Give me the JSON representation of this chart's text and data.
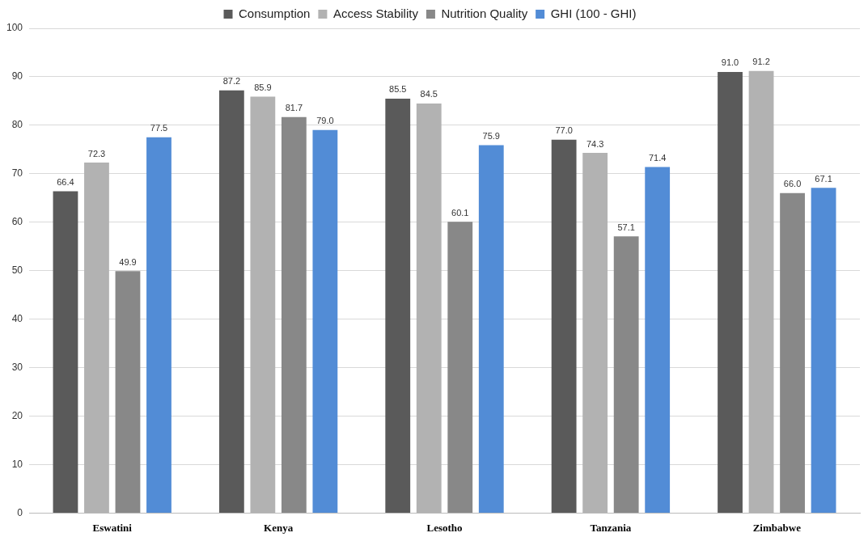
{
  "chart_data": {
    "type": "bar",
    "categories": [
      "Eswatini",
      "Kenya",
      "Lesotho",
      "Tanzania",
      "Zimbabwe"
    ],
    "series": [
      {
        "name": "Consumption",
        "color": "#5a5a5a",
        "values": [
          66.4,
          87.2,
          85.5,
          77.0,
          91.0
        ],
        "value_labels": [
          "66.4",
          "87.2",
          "85.5",
          "77.0",
          "91.0"
        ]
      },
      {
        "name": "Access Stability",
        "color": "#b2b2b2",
        "values": [
          72.3,
          85.9,
          84.5,
          74.3,
          91.2
        ],
        "value_labels": [
          "72.3",
          "85.9",
          "84.5",
          "74.3",
          "91.2"
        ]
      },
      {
        "name": "Nutrition Quality",
        "color": "#888888",
        "values": [
          49.9,
          81.7,
          60.1,
          57.1,
          66.0
        ],
        "value_labels": [
          "49.9",
          "81.7",
          "60.1",
          "57.1",
          "66.0"
        ]
      },
      {
        "name": "GHI (100 - GHI)",
        "color": "#528cd6",
        "values": [
          77.5,
          79.0,
          75.9,
          71.4,
          67.1
        ],
        "value_labels": [
          "77.5",
          "79.0",
          "75.9",
          "71.4",
          "67.1"
        ]
      }
    ],
    "ylim": [
      0,
      100
    ],
    "yticks": [
      0,
      10,
      20,
      30,
      40,
      50,
      60,
      70,
      80,
      90,
      100
    ],
    "grid": "y",
    "legend": "top"
  }
}
